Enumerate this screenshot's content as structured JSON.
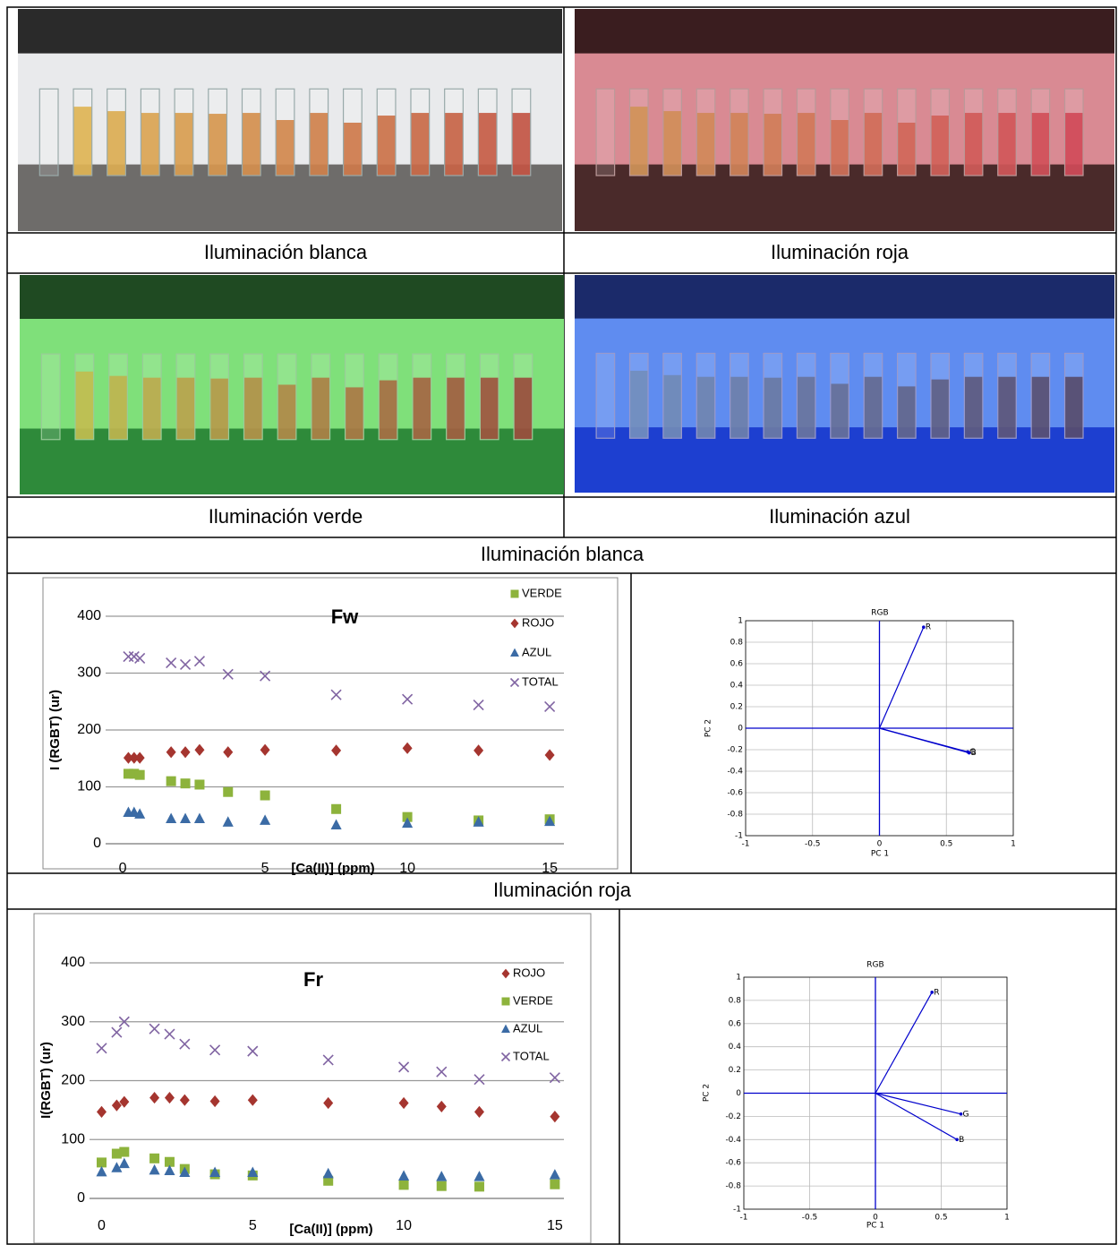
{
  "photo_captions": [
    "Iluminación blanca",
    "Iluminación roja",
    "Iluminación verde",
    "Iluminación azul"
  ],
  "sections": [
    "Iluminación blanca",
    "Iluminación roja"
  ],
  "chart_data": [
    {
      "type": "scatter",
      "title": "Fw",
      "x_label": "[Ca(II)] (ppm)",
      "y_label": "I (RGBT) (ur)",
      "x": [
        0.2,
        0.4,
        0.6,
        1.7,
        2.2,
        2.7,
        3.7,
        5,
        7.5,
        10,
        12.5,
        15
      ],
      "xlim": [
        -0.6,
        15.5
      ],
      "xticks": [
        0,
        5,
        10,
        15
      ],
      "ylim": [
        0,
        400
      ],
      "yticks": [
        0,
        100,
        200,
        300,
        400
      ],
      "grid": true,
      "legend": "right",
      "series": [
        {
          "name": "VERDE",
          "color": "#8db33c",
          "marker": "square",
          "values": [
            123,
            123,
            121,
            110,
            106,
            104,
            91,
            85,
            61,
            47,
            41,
            43
          ]
        },
        {
          "name": "ROJO",
          "color": "#a5352f",
          "marker": "diamond",
          "values": [
            151,
            151,
            151,
            161,
            161,
            165,
            161,
            165,
            164,
            168,
            164,
            156
          ]
        },
        {
          "name": "AZUL",
          "color": "#3b6ba5",
          "marker": "triangle",
          "values": [
            55,
            55,
            52,
            44,
            44,
            44,
            38,
            41,
            33,
            36,
            38,
            39
          ]
        },
        {
          "name": "TOTAL",
          "color": "#8064a2",
          "marker": "x",
          "values": [
            329,
            329,
            326,
            318,
            315,
            321,
            298,
            295,
            262,
            254,
            244,
            241
          ]
        }
      ]
    },
    {
      "type": "biplot",
      "title": "RGB",
      "x_label": "PC 1",
      "y_label": "PC 2",
      "xlim": [
        -1,
        1
      ],
      "xticks": [
        -1,
        -0.5,
        0,
        0.5,
        1
      ],
      "ylim": [
        -1,
        1
      ],
      "yticks": [
        -1,
        -0.8,
        -0.6,
        -0.4,
        -0.2,
        0,
        0.2,
        0.4,
        0.6,
        0.8,
        1
      ],
      "grid": true,
      "color": "#0000cc",
      "points": [
        {
          "label": "R",
          "x": 0.33,
          "y": 0.94
        },
        {
          "label": "G",
          "x": 0.66,
          "y": -0.22
        },
        {
          "label": "B",
          "x": 0.67,
          "y": -0.23
        }
      ]
    },
    {
      "type": "scatter",
      "title": "Fr",
      "x_label": "[Ca(II)] (ppm)",
      "y_label": "I(RGBT) (ur)",
      "x": [
        0,
        0.5,
        0.75,
        1.75,
        2.25,
        2.75,
        3.75,
        5,
        7.5,
        10,
        11.25,
        12.5,
        15
      ],
      "xlim": [
        -0.4,
        15.3
      ],
      "xticks": [
        0,
        5,
        10,
        15
      ],
      "ylim": [
        0,
        400
      ],
      "yticks": [
        0,
        100,
        200,
        300,
        400
      ],
      "grid": true,
      "legend": "right",
      "series": [
        {
          "name": "ROJO",
          "color": "#a5352f",
          "marker": "diamond",
          "values": [
            147,
            158,
            164,
            171,
            171,
            167,
            165,
            167,
            162,
            162,
            156,
            147,
            139
          ]
        },
        {
          "name": "VERDE",
          "color": "#8db33c",
          "marker": "square",
          "values": [
            61,
            76,
            79,
            68,
            62,
            50,
            41,
            39,
            30,
            23,
            21,
            20,
            24
          ]
        },
        {
          "name": "AZUL",
          "color": "#3b6ba5",
          "marker": "triangle",
          "values": [
            45,
            52,
            59,
            48,
            47,
            44,
            44,
            44,
            42,
            38,
            37,
            37,
            40
          ]
        },
        {
          "name": "TOTAL",
          "color": "#8064a2",
          "marker": "x",
          "values": [
            255,
            282,
            300,
            288,
            279,
            262,
            252,
            250,
            235,
            223,
            215,
            202,
            205
          ]
        }
      ]
    },
    {
      "type": "biplot",
      "title": "RGB",
      "x_label": "PC 1",
      "y_label": "PC 2",
      "xlim": [
        -1,
        1
      ],
      "xticks": [
        -1,
        -0.5,
        0,
        0.5,
        1
      ],
      "ylim": [
        -1,
        1
      ],
      "yticks": [
        -1,
        -0.8,
        -0.6,
        -0.4,
        -0.2,
        0,
        0.2,
        0.4,
        0.6,
        0.8,
        1
      ],
      "grid": true,
      "color": "#0000cc",
      "points": [
        {
          "label": "R",
          "x": 0.43,
          "y": 0.87
        },
        {
          "label": "G",
          "x": 0.65,
          "y": -0.18
        },
        {
          "label": "B",
          "x": 0.62,
          "y": -0.4
        }
      ]
    }
  ]
}
